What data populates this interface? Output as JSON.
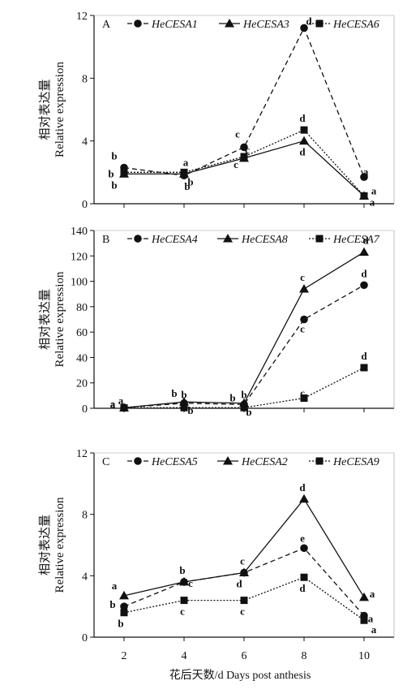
{
  "chart_data": {
    "type": "line",
    "x": [
      2,
      4,
      6,
      8,
      10
    ],
    "xlabel": "花后天数/d Days post anthesis",
    "panels": [
      {
        "label": "A",
        "ylabel_cn": "相对表达量",
        "ylabel_en": "Relative expression",
        "ylim": [
          0,
          12
        ],
        "yticks": [
          0,
          4,
          8,
          12
        ],
        "series": [
          {
            "name": "HeCESA1",
            "marker": "circle",
            "dash": "dashed",
            "values": [
              2.3,
              1.8,
              3.6,
              11.2,
              1.7
            ],
            "letters": [
              "b",
              "b",
              "c",
              "d",
              "a"
            ]
          },
          {
            "name": "HeCESA3",
            "marker": "triangle",
            "dash": "solid",
            "values": [
              1.9,
              1.9,
              2.9,
              4.0,
              0.5
            ],
            "letters": [
              "b",
              "a",
              "c",
              "d",
              "a"
            ]
          },
          {
            "name": "HeCESA6",
            "marker": "square",
            "dash": "dotted",
            "values": [
              2.0,
              2.0,
              3.0,
              4.7,
              0.5
            ],
            "letters": [
              "b",
              "b",
              "c",
              "d",
              "a"
            ]
          }
        ]
      },
      {
        "label": "B",
        "ylabel_cn": "相对表达量",
        "ylabel_en": "Relative expression",
        "ylim": [
          0,
          140
        ],
        "yticks": [
          0,
          20,
          40,
          60,
          80,
          100,
          120,
          140
        ],
        "series": [
          {
            "name": "HeCESA4",
            "marker": "circle",
            "dash": "dashed",
            "values": [
              0.5,
              4,
              3,
              70,
              97
            ],
            "letters": [
              "a",
              "b",
              "b",
              "c",
              "d"
            ]
          },
          {
            "name": "HeCESA8",
            "marker": "triangle",
            "dash": "solid",
            "values": [
              0.5,
              5,
              4,
              94,
              123
            ],
            "letters": [
              "a",
              "b",
              "b",
              "c",
              "d"
            ]
          },
          {
            "name": "HeCESA7",
            "marker": "square",
            "dash": "dotted",
            "values": [
              0.3,
              0.5,
              0.5,
              8,
              32
            ],
            "letters": [
              "a",
              "b",
              "b",
              "c",
              "d"
            ]
          }
        ]
      },
      {
        "label": "C",
        "ylabel_cn": "相对表达量",
        "ylabel_en": "Relative expression",
        "ylim": [
          0,
          12
        ],
        "yticks": [
          0,
          4,
          8,
          12
        ],
        "series": [
          {
            "name": "HeCESA5",
            "marker": "circle",
            "dash": "dashed",
            "values": [
              2.0,
              3.6,
              4.2,
              5.8,
              1.4
            ],
            "letters": [
              "b",
              "c",
              "d",
              "e",
              "a"
            ]
          },
          {
            "name": "HeCESA2",
            "marker": "triangle",
            "dash": "solid",
            "values": [
              2.7,
              3.6,
              4.2,
              9.0,
              2.6
            ],
            "letters": [
              "a",
              "b",
              "c",
              "d",
              "a"
            ]
          },
          {
            "name": "HeCESA9",
            "marker": "square",
            "dash": "dotted",
            "values": [
              1.6,
              2.4,
              2.4,
              3.9,
              1.1
            ],
            "letters": [
              "b",
              "c",
              "c",
              "d",
              "a"
            ]
          }
        ]
      }
    ]
  }
}
